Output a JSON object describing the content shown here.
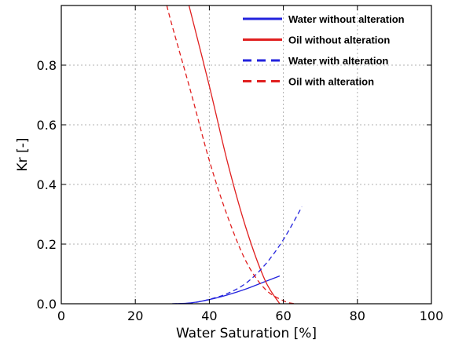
{
  "chart_data": {
    "type": "line",
    "xlabel": "Water Saturation [%]",
    "ylabel": "Kr [-]",
    "xlim": [
      0,
      100
    ],
    "ylim": [
      0,
      1.0
    ],
    "xticks": [
      0,
      20,
      40,
      60,
      80,
      100
    ],
    "yticks": [
      0.0,
      0.2,
      0.4,
      0.6,
      0.8
    ],
    "grid": true,
    "legend_position": "top-right",
    "series": [
      {
        "name": "Water without alteration",
        "color": "#2222dd",
        "style": "solid",
        "x": [
          30,
          35,
          40,
          45,
          50,
          55,
          59
        ],
        "y": [
          0.0,
          0.003,
          0.014,
          0.03,
          0.05,
          0.074,
          0.093
        ]
      },
      {
        "name": "Oil without alteration",
        "color": "#e01f1f",
        "style": "solid",
        "x": [
          34.5,
          40,
          45,
          50,
          55,
          59
        ],
        "y": [
          1.0,
          0.73,
          0.47,
          0.25,
          0.08,
          0.0
        ]
      },
      {
        "name": "Water with alteration",
        "color": "#2222dd",
        "style": "dashed",
        "x": [
          30,
          35,
          40,
          45,
          50,
          55,
          60,
          65
        ],
        "y": [
          0.0,
          0.002,
          0.015,
          0.035,
          0.07,
          0.13,
          0.215,
          0.325
        ]
      },
      {
        "name": "Oil with alteration",
        "color": "#e01f1f",
        "style": "dashed",
        "x": [
          28.5,
          30,
          35,
          40,
          45,
          50,
          55,
          60,
          63
        ],
        "y": [
          1.0,
          0.93,
          0.71,
          0.48,
          0.29,
          0.14,
          0.05,
          0.01,
          0.0
        ]
      }
    ]
  }
}
